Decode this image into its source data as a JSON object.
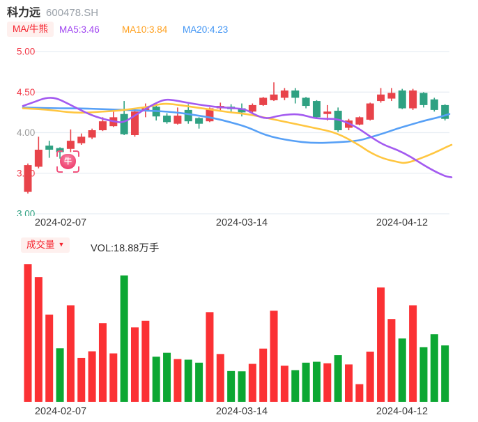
{
  "header": {
    "title": "科力远",
    "code": "600478.SH"
  },
  "legend": {
    "mode_chip": "MA/牛熊",
    "items": [
      {
        "label": "MA5:3.46",
        "color": "#9f44f0"
      },
      {
        "label": "MA10:3.84",
        "color": "#ff9f1c"
      },
      {
        "label": "MA20:4.23",
        "color": "#3f94f4"
      }
    ]
  },
  "volume_header": {
    "chip": "成交量",
    "chip_arrow": "▼",
    "vol_label": "VOL:18.88万手"
  },
  "colors": {
    "candle_up": "#e8434a",
    "candle_down": "#2fa182",
    "volume_up": "#fb3134",
    "volume_down": "#0ca733",
    "grid": "#e7edf3",
    "axis_red": "#f23645",
    "axis_gray": "#999999",
    "axis_green": "#2fa182",
    "date_text": "#3a3a3a",
    "chip_bg": "#fef0ee",
    "chip_text": "#f5222d"
  },
  "chart_data": {
    "type": "candlestick+volume",
    "symbol": "科力远 600478.SH",
    "price_pane": {
      "ylim": [
        3.0,
        5.0
      ],
      "grid": true,
      "y_ticks": [
        {
          "text": "5.00",
          "value": 5.0,
          "color": "#f23645"
        },
        {
          "text": "4.50",
          "value": 4.5,
          "color": "#f23645"
        },
        {
          "text": "4.00",
          "value": 4.0,
          "color": "#999999"
        },
        {
          "text": "3.50",
          "value": 3.5,
          "color": "#f23645"
        },
        {
          "text": "3.00",
          "value": 3.0,
          "color": "#2fa182"
        }
      ]
    },
    "x_ticks": [
      {
        "text": "2024-02-07",
        "center": 87
      },
      {
        "text": "2024-03-14",
        "center": 347
      },
      {
        "text": "2024-04-12",
        "center": 577
      }
    ],
    "candles": [
      [
        3.27,
        3.62,
        3.25,
        3.6
      ],
      [
        3.58,
        3.95,
        3.56,
        3.79
      ],
      [
        3.84,
        3.9,
        3.69,
        3.79
      ],
      [
        3.81,
        3.82,
        3.68,
        3.76
      ],
      [
        3.8,
        4.04,
        3.76,
        3.9
      ],
      [
        3.87,
        3.99,
        3.85,
        3.95
      ],
      [
        3.94,
        4.05,
        3.92,
        4.03
      ],
      [
        4.03,
        4.19,
        4.02,
        4.14
      ],
      [
        4.08,
        4.26,
        4.07,
        4.19
      ],
      [
        4.23,
        4.39,
        3.97,
        3.98
      ],
      [
        3.97,
        4.27,
        3.95,
        4.26
      ],
      [
        4.27,
        4.36,
        4.19,
        4.3
      ],
      [
        4.32,
        4.37,
        4.15,
        4.2
      ],
      [
        4.21,
        4.24,
        4.11,
        4.13
      ],
      [
        4.11,
        4.31,
        4.1,
        4.21
      ],
      [
        4.28,
        4.35,
        4.11,
        4.14
      ],
      [
        4.18,
        4.19,
        4.05,
        4.11
      ],
      [
        4.14,
        4.31,
        4.13,
        4.3
      ],
      [
        4.3,
        4.37,
        4.26,
        4.33
      ],
      [
        4.32,
        4.35,
        4.24,
        4.29
      ],
      [
        4.3,
        4.36,
        4.2,
        4.25
      ],
      [
        4.26,
        4.36,
        4.23,
        4.34
      ],
      [
        4.34,
        4.44,
        4.33,
        4.43
      ],
      [
        4.4,
        4.62,
        4.39,
        4.47
      ],
      [
        4.43,
        4.55,
        4.4,
        4.52
      ],
      [
        4.52,
        4.55,
        4.36,
        4.43
      ],
      [
        4.43,
        4.44,
        4.3,
        4.33
      ],
      [
        4.39,
        4.4,
        4.17,
        4.19
      ],
      [
        4.23,
        4.34,
        4.15,
        4.26
      ],
      [
        4.27,
        4.31,
        4.01,
        4.03
      ],
      [
        4.06,
        4.17,
        4.03,
        4.15
      ],
      [
        4.1,
        4.2,
        4.09,
        4.19
      ],
      [
        4.16,
        4.37,
        4.15,
        4.36
      ],
      [
        4.39,
        4.55,
        4.37,
        4.47
      ],
      [
        4.42,
        4.55,
        4.39,
        4.49
      ],
      [
        4.52,
        4.54,
        4.29,
        4.3
      ],
      [
        4.3,
        4.54,
        4.28,
        4.52
      ],
      [
        4.49,
        4.5,
        4.31,
        4.34
      ],
      [
        4.41,
        4.43,
        4.26,
        4.28
      ],
      [
        4.34,
        4.35,
        4.15,
        4.17
      ]
    ],
    "volumes_wanshou": [
      46.1,
      41.7,
      29.2,
      17.9,
      32.3,
      14.7,
      16.9,
      26.3,
      16.2,
      42.3,
      24.9,
      27.1,
      15.1,
      16.4,
      14.3,
      14.1,
      13.1,
      30.0,
      16.0,
      10.3,
      10.2,
      12.7,
      17.8,
      30.5,
      12.1,
      10.6,
      13.1,
      13.4,
      12.9,
      15.6,
      12.5,
      5.9,
      16.8,
      38.3,
      27.7,
      21.2,
      32.3,
      18.3,
      22.6,
      18.88
    ],
    "volume_colors": [
      "r",
      "r",
      "r",
      "g",
      "r",
      "r",
      "r",
      "r",
      "r",
      "g",
      "r",
      "r",
      "g",
      "g",
      "r",
      "g",
      "g",
      "r",
      "r",
      "g",
      "g",
      "r",
      "r",
      "r",
      "r",
      "g",
      "g",
      "g",
      "r",
      "g",
      "r",
      "r",
      "r",
      "r",
      "r",
      "g",
      "r",
      "g",
      "g",
      "g"
    ],
    "latest_volume_label": "VOL:18.88万手",
    "ma_lines": [
      {
        "name": "MA5",
        "value": 3.46,
        "color": "#a35af0",
        "points": [
          [
            33,
            4.33
          ],
          [
            50,
            4.38
          ],
          [
            65,
            4.43
          ],
          [
            80,
            4.43
          ],
          [
            97,
            4.36
          ],
          [
            113,
            4.29
          ],
          [
            130,
            4.22
          ],
          [
            147,
            4.17
          ],
          [
            163,
            4.14
          ],
          [
            177,
            4.12
          ],
          [
            195,
            4.22
          ],
          [
            210,
            4.3
          ],
          [
            225,
            4.37
          ],
          [
            237,
            4.41
          ],
          [
            250,
            4.4
          ],
          [
            262,
            4.38
          ],
          [
            275,
            4.36
          ],
          [
            290,
            4.34
          ],
          [
            307,
            4.32
          ],
          [
            322,
            4.31
          ],
          [
            337,
            4.3
          ],
          [
            352,
            4.29
          ],
          [
            368,
            4.21
          ],
          [
            383,
            4.17
          ],
          [
            400,
            4.21
          ],
          [
            420,
            4.23
          ],
          [
            435,
            4.22
          ],
          [
            450,
            4.18
          ],
          [
            467,
            4.17
          ],
          [
            483,
            4.17
          ],
          [
            500,
            4.12
          ],
          [
            515,
            4.05
          ],
          [
            530,
            3.96
          ],
          [
            550,
            3.85
          ],
          [
            570,
            3.79
          ],
          [
            590,
            3.7
          ],
          [
            610,
            3.59
          ],
          [
            627,
            3.51
          ],
          [
            640,
            3.46
          ],
          [
            648,
            3.45
          ]
        ]
      },
      {
        "name": "MA10",
        "value": 3.84,
        "color": "#ffc640",
        "points": [
          [
            33,
            4.3
          ],
          [
            60,
            4.29
          ],
          [
            80,
            4.27
          ],
          [
            113,
            4.24
          ],
          [
            147,
            4.26
          ],
          [
            170,
            4.27
          ],
          [
            195,
            4.3
          ],
          [
            215,
            4.32
          ],
          [
            233,
            4.36
          ],
          [
            250,
            4.35
          ],
          [
            273,
            4.32
          ],
          [
            307,
            4.28
          ],
          [
            330,
            4.25
          ],
          [
            355,
            4.23
          ],
          [
            383,
            4.18
          ],
          [
            417,
            4.12
          ],
          [
            450,
            4.06
          ],
          [
            483,
            4.0
          ],
          [
            515,
            3.85
          ],
          [
            530,
            3.76
          ],
          [
            550,
            3.68
          ],
          [
            570,
            3.64
          ],
          [
            582,
            3.62
          ],
          [
            603,
            3.68
          ],
          [
            623,
            3.75
          ],
          [
            640,
            3.82
          ],
          [
            648,
            3.85
          ]
        ]
      },
      {
        "name": "MA20",
        "value": 4.23,
        "color": "#57a0f6",
        "points": [
          [
            33,
            4.31
          ],
          [
            80,
            4.3
          ],
          [
            113,
            4.3
          ],
          [
            147,
            4.29
          ],
          [
            180,
            4.28
          ],
          [
            215,
            4.27
          ],
          [
            240,
            4.26
          ],
          [
            262,
            4.24
          ],
          [
            285,
            4.21
          ],
          [
            307,
            4.18
          ],
          [
            330,
            4.13
          ],
          [
            355,
            4.07
          ],
          [
            383,
            3.96
          ],
          [
            417,
            3.9
          ],
          [
            450,
            3.87
          ],
          [
            483,
            3.88
          ],
          [
            515,
            3.9
          ],
          [
            530,
            3.94
          ],
          [
            550,
            3.99
          ],
          [
            570,
            4.05
          ],
          [
            590,
            4.1
          ],
          [
            610,
            4.15
          ],
          [
            630,
            4.19
          ],
          [
            645,
            4.23
          ]
        ]
      }
    ],
    "marker": {
      "name": "bull-badge",
      "label": "牛",
      "x": 97,
      "y": 232
    }
  }
}
